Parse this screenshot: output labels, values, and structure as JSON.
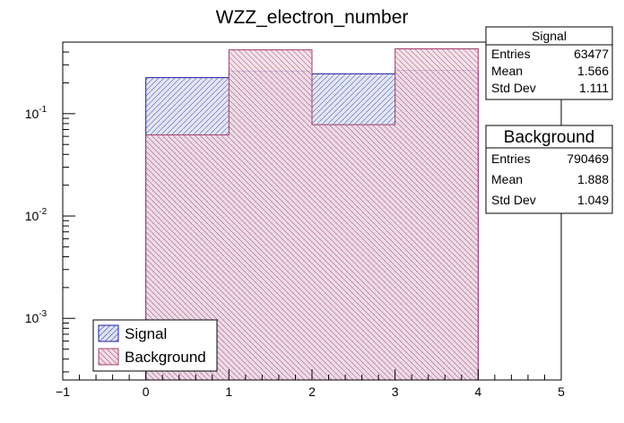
{
  "chart_data": {
    "type": "bar",
    "title": "WZZ_electron_number",
    "xlabel": "",
    "ylabel": "",
    "xlim": [
      -1,
      5
    ],
    "ylim": [
      0.00025,
      0.5
    ],
    "log_y": true,
    "bin_edges": [
      0,
      1,
      2,
      3,
      4
    ],
    "x_ticks": [
      -1,
      0,
      1,
      2,
      3,
      4,
      5
    ],
    "y_tick_labels": [
      {
        "mantissa": "10",
        "exp": "-3",
        "value": 0.001
      },
      {
        "mantissa": "10",
        "exp": "-2",
        "value": 0.01
      },
      {
        "mantissa": "10",
        "exp": "-1",
        "value": 0.1
      }
    ],
    "series": [
      {
        "name": "Signal",
        "values": [
          0.225,
          0.26,
          0.245,
          0.265
        ],
        "color": "#1f1fa0",
        "fill": "#dde2f2",
        "hatch": "diagonal-right"
      },
      {
        "name": "Background",
        "values": [
          0.062,
          0.42,
          0.078,
          0.43
        ],
        "color": "#a0406e",
        "fill": "#f2dde5",
        "hatch": "diagonal-left"
      }
    ],
    "stats_boxes": [
      {
        "title": "Signal",
        "rows": [
          {
            "label": "Entries",
            "value": "63477"
          },
          {
            "label": "Mean",
            "value": "1.566"
          },
          {
            "label": "Std Dev",
            "value": "1.111"
          }
        ]
      },
      {
        "title": "Background",
        "rows": [
          {
            "label": "Entries",
            "value": "790469"
          },
          {
            "label": "Mean",
            "value": "1.888"
          },
          {
            "label": "Std Dev",
            "value": "1.049"
          }
        ]
      }
    ],
    "legend": {
      "position": "bottom-left",
      "entries": [
        "Signal",
        "Background"
      ]
    },
    "grid": false
  }
}
